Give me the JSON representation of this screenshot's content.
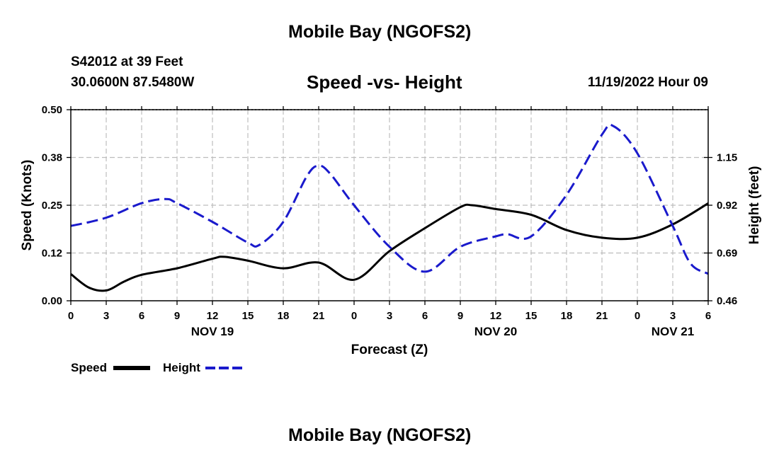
{
  "header": {
    "title": "Mobile Bay (NGOFS2)",
    "station": "S42012 at 39 Feet",
    "coords": "30.0600N  87.5480W",
    "plot_title": "Speed -vs- Height",
    "timestamp": "11/19/2022 Hour 09"
  },
  "footer": {
    "title": "Mobile Bay (NGOFS2)"
  },
  "legend": {
    "speed_label": "Speed",
    "height_label": "Height"
  },
  "colors": {
    "speed": "#000000",
    "height": "#1a1acc",
    "grid": "#bdbdbd"
  },
  "chart_data": {
    "type": "line",
    "title": "Speed -vs- Height",
    "xlabel": "Forecast (Z)",
    "ylabel": "Speed (Knots)",
    "y2label": "Height (feet)",
    "x_hours_range": [
      0,
      54
    ],
    "x_tick_hours": [
      0,
      3,
      6,
      9,
      12,
      15,
      18,
      21,
      24,
      27,
      30,
      33,
      36,
      39,
      42,
      45,
      48,
      51,
      54
    ],
    "x_tick_labels": [
      "0",
      "3",
      "6",
      "9",
      "12",
      "15",
      "18",
      "21",
      "0",
      "3",
      "6",
      "9",
      "12",
      "15",
      "18",
      "21",
      "0",
      "3",
      "6"
    ],
    "date_labels": [
      {
        "hour": 12,
        "label": "NOV 19"
      },
      {
        "hour": 36,
        "label": "NOV 20"
      },
      {
        "hour": 51,
        "label": "NOV 21"
      }
    ],
    "y_left": {
      "range": [
        0,
        0.5
      ],
      "ticks": [
        0,
        0.125,
        0.25,
        0.375,
        0.5
      ],
      "tick_labels": [
        "0.00",
        "0.12",
        "0.25",
        "0.38",
        "0.50"
      ]
    },
    "y_right": {
      "range": [
        0.46,
        1.38
      ],
      "ticks": [
        0.46,
        0.69,
        0.92,
        1.15
      ],
      "tick_labels": [
        "0.46",
        "0.69",
        "0.92",
        "1.15"
      ]
    },
    "series": [
      {
        "name": "Speed",
        "axis": "left",
        "style": "solid",
        "x": [
          0,
          1.5,
          3,
          4.5,
          6,
          9,
          12,
          13,
          15,
          18,
          21,
          24,
          27,
          30,
          33,
          34,
          36,
          39,
          42,
          45,
          48,
          51,
          54
        ],
        "y": [
          0.07,
          0.035,
          0.027,
          0.05,
          0.068,
          0.085,
          0.11,
          0.115,
          0.105,
          0.085,
          0.1,
          0.055,
          0.13,
          0.19,
          0.245,
          0.25,
          0.24,
          0.225,
          0.185,
          0.165,
          0.165,
          0.2,
          0.255
        ]
      },
      {
        "name": "Height",
        "axis": "right",
        "style": "dashed",
        "x": [
          0,
          3,
          6,
          8,
          9,
          12,
          15,
          16,
          18,
          20,
          21,
          22,
          24,
          27,
          30,
          33,
          36,
          37,
          39,
          42,
          45,
          46,
          48,
          51,
          52.5,
          54
        ],
        "y": [
          0.82,
          0.86,
          0.93,
          0.95,
          0.93,
          0.84,
          0.74,
          0.73,
          0.84,
          1.06,
          1.11,
          1.07,
          0.92,
          0.72,
          0.6,
          0.72,
          0.77,
          0.78,
          0.77,
          0.97,
          1.26,
          1.3,
          1.17,
          0.82,
          0.64,
          0.59
        ]
      }
    ]
  }
}
